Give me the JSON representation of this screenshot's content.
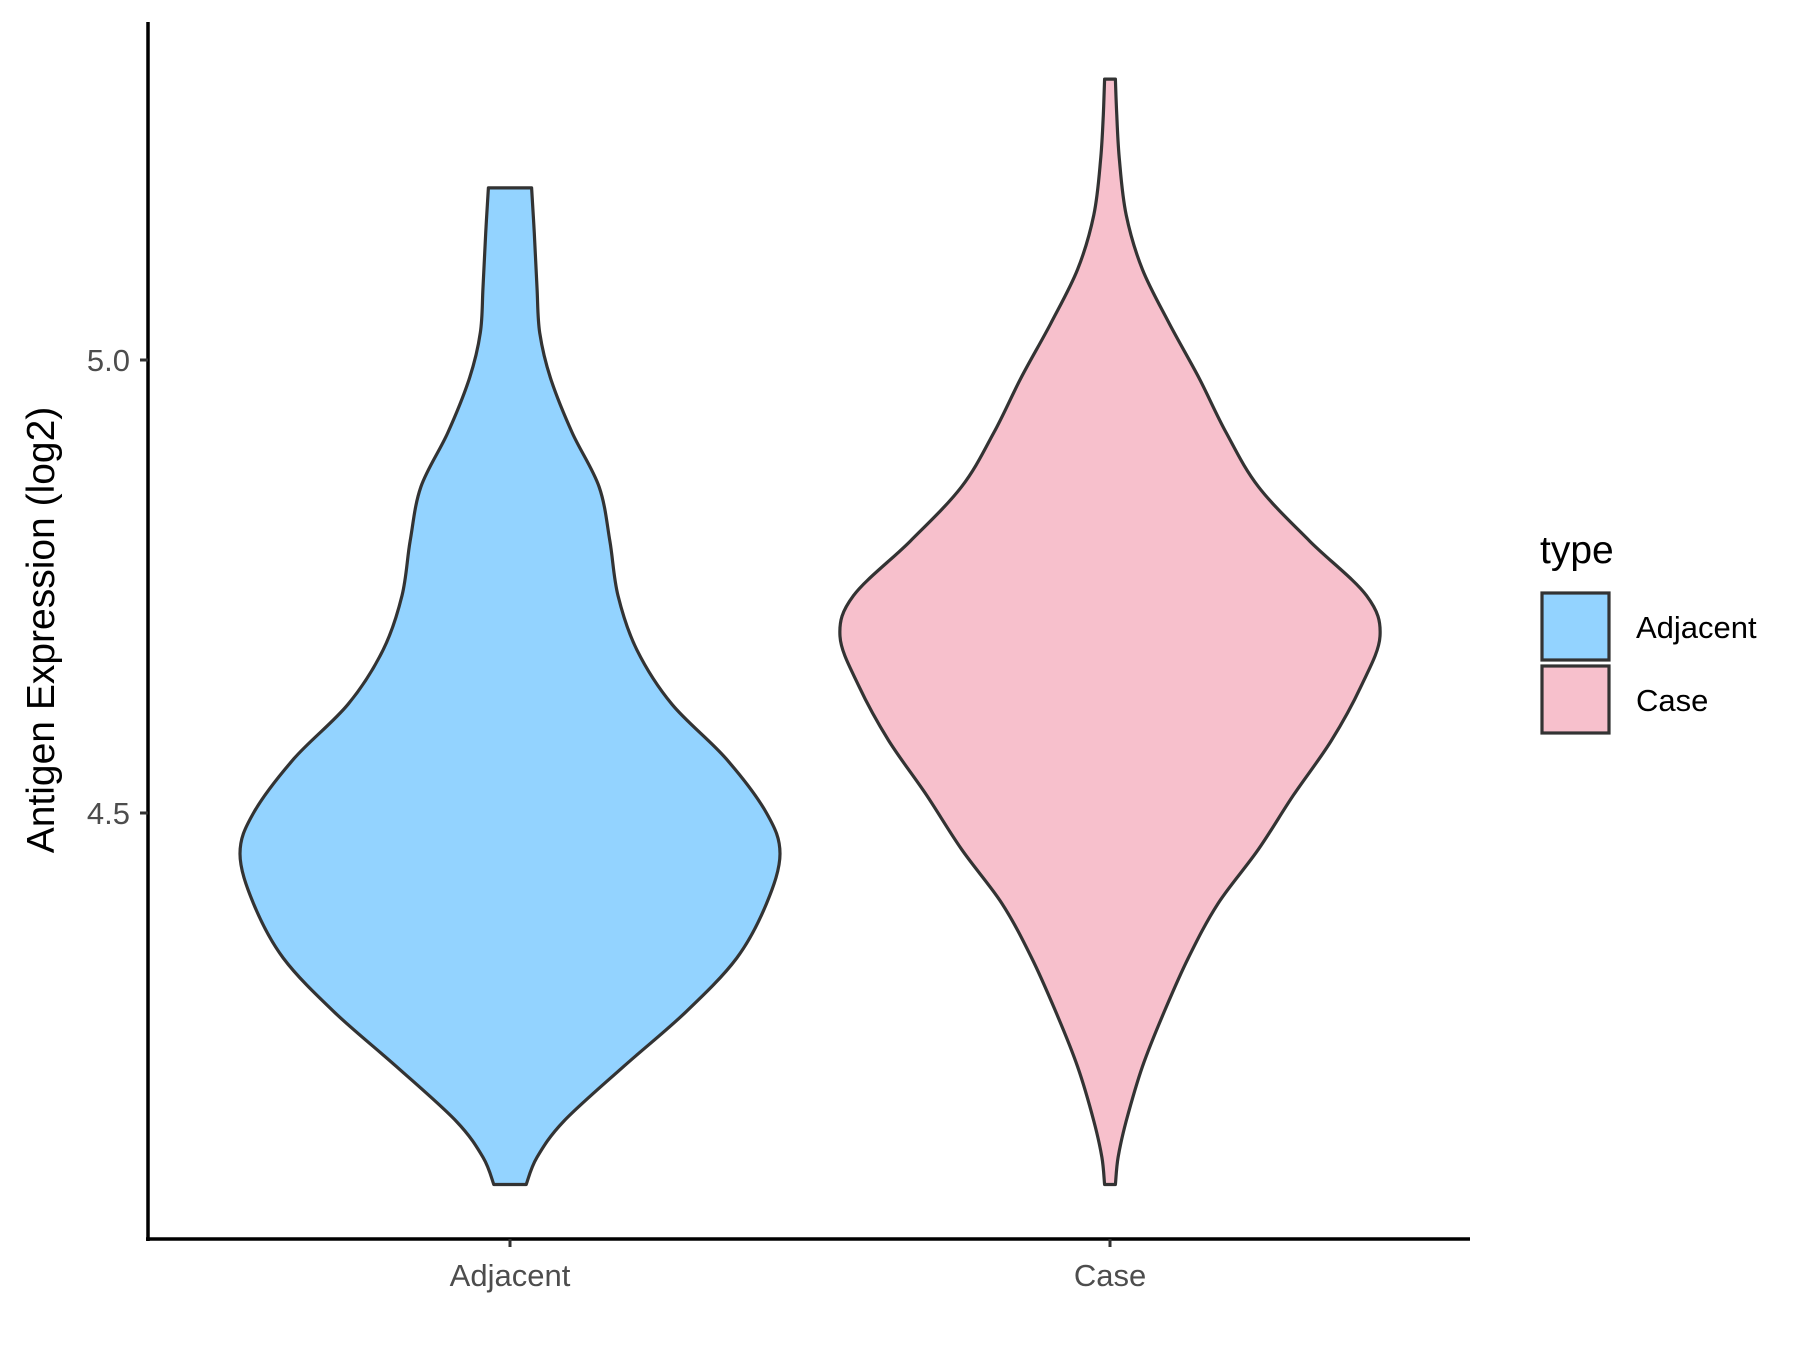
{
  "chart_data": {
    "type": "violin",
    "ylabel": "Antigen Expression (log2)",
    "xlabel": "",
    "categories": [
      "Adjacent",
      "Case"
    ],
    "y_ticks": [
      4.5,
      5.0
    ],
    "y_tick_labels": [
      "4.5",
      "5.0"
    ],
    "ylim": [
      4.03,
      5.38
    ],
    "grid": false,
    "legend": {
      "title": "type",
      "placement": "right",
      "entries": [
        {
          "label": "Adjacent",
          "color": "#93d3ff"
        },
        {
          "label": "Case",
          "color": "#f7c0cc"
        }
      ]
    },
    "series": [
      {
        "category": "Adjacent",
        "color": "#93d3ff",
        "y_min": 4.09,
        "y_max": 5.19,
        "density_profile": [
          [
            4.09,
            0.06
          ],
          [
            4.12,
            0.1
          ],
          [
            4.16,
            0.2
          ],
          [
            4.22,
            0.42
          ],
          [
            4.28,
            0.65
          ],
          [
            4.34,
            0.84
          ],
          [
            4.4,
            0.95
          ],
          [
            4.455,
            1.0
          ],
          [
            4.5,
            0.95
          ],
          [
            4.56,
            0.8
          ],
          [
            4.62,
            0.6
          ],
          [
            4.68,
            0.47
          ],
          [
            4.74,
            0.4
          ],
          [
            4.8,
            0.37
          ],
          [
            4.86,
            0.33
          ],
          [
            4.92,
            0.23
          ],
          [
            4.98,
            0.15
          ],
          [
            5.03,
            0.11
          ],
          [
            5.08,
            0.1
          ],
          [
            5.14,
            0.09
          ],
          [
            5.19,
            0.08
          ]
        ]
      },
      {
        "category": "Case",
        "color": "#f7c0cc",
        "y_min": 4.09,
        "y_max": 5.31,
        "density_profile": [
          [
            4.09,
            0.02
          ],
          [
            4.12,
            0.03
          ],
          [
            4.16,
            0.06
          ],
          [
            4.22,
            0.12
          ],
          [
            4.28,
            0.2
          ],
          [
            4.34,
            0.29
          ],
          [
            4.4,
            0.4
          ],
          [
            4.46,
            0.55
          ],
          [
            4.52,
            0.68
          ],
          [
            4.58,
            0.82
          ],
          [
            4.64,
            0.93
          ],
          [
            4.695,
            1.0
          ],
          [
            4.74,
            0.95
          ],
          [
            4.8,
            0.74
          ],
          [
            4.86,
            0.55
          ],
          [
            4.92,
            0.43
          ],
          [
            4.98,
            0.33
          ],
          [
            5.04,
            0.22
          ],
          [
            5.1,
            0.12
          ],
          [
            5.16,
            0.06
          ],
          [
            5.22,
            0.035
          ],
          [
            5.27,
            0.025
          ],
          [
            5.31,
            0.02
          ]
        ]
      }
    ]
  }
}
